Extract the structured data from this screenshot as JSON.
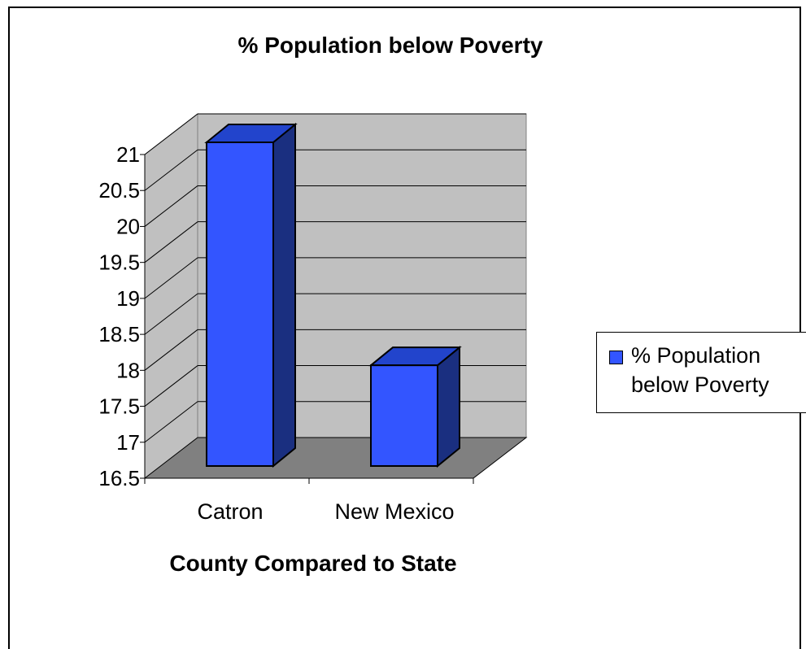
{
  "chart_data": {
    "type": "bar",
    "title": "% Population below Poverty",
    "xlabel": "County Compared to State",
    "ylabel": "",
    "categories": [
      "Catron",
      "New Mexico"
    ],
    "series": [
      {
        "name": "% Population below Poverty",
        "values": [
          21.0,
          17.9
        ]
      }
    ],
    "ylim": [
      16.5,
      21
    ],
    "yticks": [
      "16.5",
      "17",
      "17.5",
      "18",
      "18.5",
      "19",
      "19.5",
      "20",
      "20.5",
      "21"
    ],
    "grid": true,
    "legend_position": "right",
    "style": "3d-column",
    "colors": {
      "bar_front": "#3355ff",
      "bar_side": "#1a2f80",
      "bar_top": "#2244cc",
      "wall": "#c0c0c0",
      "floor": "#808080"
    }
  }
}
